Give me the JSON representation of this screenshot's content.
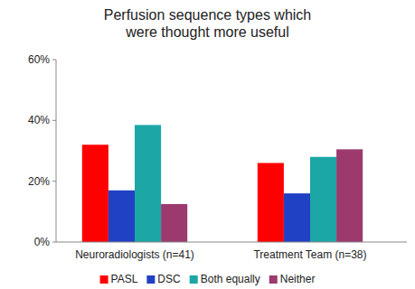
{
  "chart_data": {
    "type": "bar",
    "title": "Perfusion sequence types which were thought more useful",
    "categories": [
      "Neuroradiologists (n=41)",
      "Treatment Team (n=38)"
    ],
    "series": [
      {
        "name": "PASL",
        "color": "#ff0000",
        "values": [
          32,
          26
        ]
      },
      {
        "name": "DSC",
        "color": "#2141c4",
        "values": [
          17,
          16
        ]
      },
      {
        "name": "Both equally",
        "color": "#1ca6a6",
        "values": [
          38.5,
          28
        ]
      },
      {
        "name": "Neither",
        "color": "#9c3a6e",
        "values": [
          12.5,
          30.5
        ]
      }
    ],
    "ylim": [
      0,
      60
    ],
    "yticks": [
      {
        "value": 0,
        "label": "0%"
      },
      {
        "value": 20,
        "label": "20%"
      },
      {
        "value": 40,
        "label": "40%"
      },
      {
        "value": 60,
        "label": "60%"
      }
    ],
    "grid": false,
    "legend": "bottom"
  }
}
